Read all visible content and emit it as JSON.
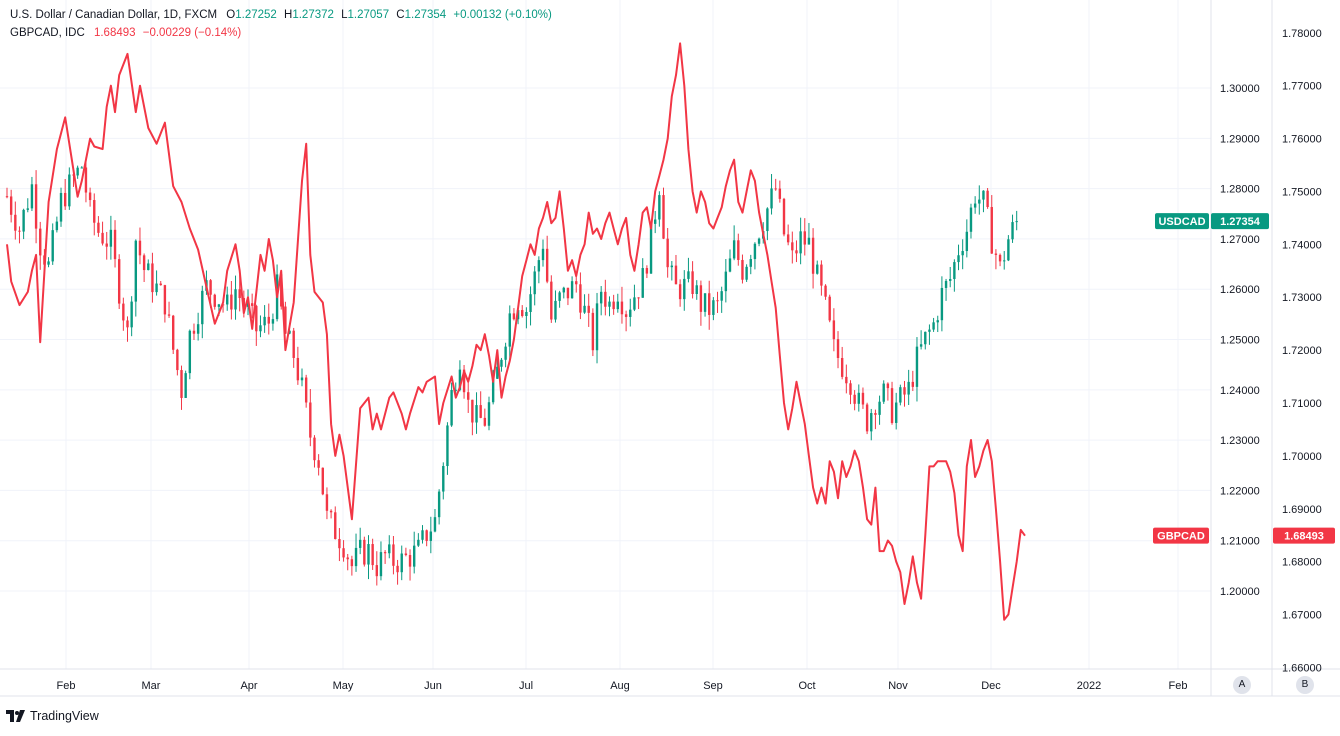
{
  "legend": {
    "primary": {
      "title": "U.S. Dollar / Canadian Dollar, 1D, FXCM",
      "o_label": "O",
      "o": "1.27252",
      "h_label": "H",
      "h": "1.27372",
      "l_label": "L",
      "l": "1.27057",
      "c_label": "C",
      "c": "1.27354",
      "change": "+0.00132 (+0.10%)"
    },
    "compare": {
      "title": "GBPCAD, IDC",
      "value": "1.68493",
      "change": "−0.00229 (−0.14%)"
    }
  },
  "branding": {
    "text": "TradingView"
  },
  "scale_buttons": {
    "a": "A",
    "b": "B"
  },
  "colors": {
    "up": "#089981",
    "down": "#f23645",
    "compare_line": "#f23645",
    "grid": "#f0f3fa",
    "axis_line": "#e0e3eb"
  },
  "chart_data": {
    "type": "candlestick+line",
    "title": "U.S. Dollar / Canadian Dollar, 1D, FXCM",
    "x_tick_labels": [
      "Feb",
      "Mar",
      "Apr",
      "May",
      "Jun",
      "Jul",
      "Aug",
      "Sep",
      "Oct",
      "Nov",
      "Dec",
      "2022",
      "Feb"
    ],
    "left_axis": {
      "series": "USDCAD",
      "range": [
        1.1845,
        1.3175
      ],
      "ticks": [
        "1.30000",
        "1.29000",
        "1.28000",
        "1.27000",
        "1.26000",
        "1.25000",
        "1.24000",
        "1.23000",
        "1.22000",
        "1.21000",
        "1.20000"
      ],
      "last_label": "USDCAD",
      "last_value": "1.27354",
      "last_numeric": 1.27354
    },
    "right_axis": {
      "series": "GBPCAD",
      "range": [
        1.6597,
        1.7862
      ],
      "ticks": [
        "1.78000",
        "1.77000",
        "1.76000",
        "1.75000",
        "1.74000",
        "1.73000",
        "1.72000",
        "1.71000",
        "1.70000",
        "1.69000",
        "1.68000",
        "1.67000",
        "1.66000"
      ],
      "last_label": "GBPCAD",
      "last_value": "1.68493",
      "last_numeric": 1.68493
    },
    "usdcad_close_path": [
      [
        0,
        1.2785
      ],
      [
        3,
        1.272
      ],
      [
        6,
        1.2805
      ],
      [
        8,
        1.269
      ],
      [
        10,
        1.2645
      ],
      [
        13,
        1.2775
      ],
      [
        16,
        1.282
      ],
      [
        18,
        1.2845
      ],
      [
        20,
        1.275
      ],
      [
        22,
        1.2715
      ],
      [
        25,
        1.269
      ],
      [
        27,
        1.26
      ],
      [
        29,
        1.251
      ],
      [
        31,
        1.27
      ],
      [
        33,
        1.264
      ],
      [
        35,
        1.2615
      ],
      [
        38,
        1.2575
      ],
      [
        40,
        1.248
      ],
      [
        42,
        1.24
      ],
      [
        44,
        1.251
      ],
      [
        46,
        1.256
      ],
      [
        48,
        1.2605
      ],
      [
        50,
        1.259
      ],
      [
        53,
        1.2565
      ],
      [
        55,
        1.26
      ],
      [
        58,
        1.2555
      ],
      [
        60,
        1.252
      ],
      [
        63,
        1.2535
      ],
      [
        65,
        1.26
      ],
      [
        67,
        1.251
      ],
      [
        69,
        1.247
      ],
      [
        71,
        1.24
      ],
      [
        73,
        1.231
      ],
      [
        75,
        1.226
      ],
      [
        77,
        1.2145
      ],
      [
        79,
        1.212
      ],
      [
        81,
        1.2095
      ],
      [
        83,
        1.205
      ],
      [
        85,
        1.2075
      ],
      [
        87,
        1.208
      ],
      [
        89,
        1.205
      ],
      [
        91,
        1.207
      ],
      [
        93,
        1.206
      ],
      [
        95,
        1.206
      ],
      [
        97,
        1.207
      ],
      [
        99,
        1.208
      ],
      [
        101,
        1.2115
      ],
      [
        103,
        1.214
      ],
      [
        105,
        1.226
      ],
      [
        107,
        1.239
      ],
      [
        109,
        1.247
      ],
      [
        111,
        1.237
      ],
      [
        113,
        1.234
      ],
      [
        115,
        1.234
      ],
      [
        117,
        1.2395
      ],
      [
        119,
        1.2475
      ],
      [
        121,
        1.255
      ],
      [
        123,
        1.258
      ],
      [
        125,
        1.256
      ],
      [
        127,
        1.2625
      ],
      [
        129,
        1.2695
      ],
      [
        131,
        1.254
      ],
      [
        133,
        1.258
      ],
      [
        135,
        1.2595
      ],
      [
        137,
        1.261
      ],
      [
        139,
        1.2555
      ],
      [
        141,
        1.2495
      ],
      [
        143,
        1.26
      ],
      [
        145,
        1.257
      ],
      [
        147,
        1.26
      ],
      [
        149,
        1.256
      ],
      [
        151,
        1.259
      ],
      [
        153,
        1.262
      ],
      [
        155,
        1.27
      ],
      [
        157,
        1.281
      ],
      [
        159,
        1.264
      ],
      [
        161,
        1.26
      ],
      [
        163,
        1.2605
      ],
      [
        165,
        1.261
      ],
      [
        167,
        1.257
      ],
      [
        169,
        1.256
      ],
      [
        171,
        1.2565
      ],
      [
        173,
        1.262
      ],
      [
        175,
        1.268
      ],
      [
        177,
        1.264
      ],
      [
        179,
        1.268
      ],
      [
        181,
        1.272
      ],
      [
        183,
        1.276
      ],
      [
        185,
        1.28
      ],
      [
        187,
        1.271
      ],
      [
        189,
        1.266
      ],
      [
        191,
        1.27
      ],
      [
        193,
        1.269
      ],
      [
        195,
        1.262
      ],
      [
        197,
        1.256
      ],
      [
        199,
        1.248
      ],
      [
        201,
        1.245
      ],
      [
        203,
        1.242
      ],
      [
        205,
        1.237
      ],
      [
        207,
        1.234
      ],
      [
        209,
        1.238
      ],
      [
        211,
        1.239
      ],
      [
        213,
        1.236
      ],
      [
        215,
        1.238
      ],
      [
        217,
        1.24
      ],
      [
        219,
        1.246
      ],
      [
        221,
        1.25
      ],
      [
        223,
        1.253
      ],
      [
        225,
        1.259
      ],
      [
        227,
        1.262
      ],
      [
        229,
        1.268
      ],
      [
        231,
        1.272
      ],
      [
        233,
        1.279
      ],
      [
        235,
        1.277
      ],
      [
        237,
        1.27
      ],
      [
        239,
        1.264
      ],
      [
        241,
        1.27
      ],
      [
        243,
        1.2735
      ]
    ],
    "gbpcad_line": [
      [
        0,
        1.74
      ],
      [
        1,
        1.733
      ],
      [
        3,
        1.7285
      ],
      [
        5,
        1.731
      ],
      [
        6,
        1.735
      ],
      [
        7,
        1.738
      ],
      [
        8,
        1.7215
      ],
      [
        10,
        1.748
      ],
      [
        12,
        1.758
      ],
      [
        14,
        1.764
      ],
      [
        16,
        1.754
      ],
      [
        17,
        1.749
      ],
      [
        18,
        1.752
      ],
      [
        20,
        1.76
      ],
      [
        21,
        1.7585
      ],
      [
        23,
        1.758
      ],
      [
        24,
        1.766
      ],
      [
        25,
        1.77
      ],
      [
        26,
        1.765
      ],
      [
        27,
        1.772
      ],
      [
        29,
        1.776
      ],
      [
        31,
        1.765
      ],
      [
        32,
        1.77
      ],
      [
        34,
        1.762
      ],
      [
        36,
        1.759
      ],
      [
        38,
        1.763
      ],
      [
        40,
        1.751
      ],
      [
        42,
        1.748
      ],
      [
        44,
        1.743
      ],
      [
        46,
        1.739
      ],
      [
        48,
        1.732
      ],
      [
        50,
        1.725
      ],
      [
        52,
        1.729
      ],
      [
        53,
        1.735
      ],
      [
        55,
        1.74
      ],
      [
        56,
        1.735
      ],
      [
        57,
        1.727
      ],
      [
        58,
        1.73
      ],
      [
        59,
        1.724
      ],
      [
        61,
        1.738
      ],
      [
        62,
        1.735
      ],
      [
        63,
        1.741
      ],
      [
        64,
        1.737
      ],
      [
        65,
        1.73
      ],
      [
        66,
        1.735
      ],
      [
        67,
        1.72
      ],
      [
        69,
        1.729
      ],
      [
        71,
        1.752
      ],
      [
        72,
        1.759
      ],
      [
        73,
        1.738
      ],
      [
        74,
        1.731
      ],
      [
        76,
        1.729
      ],
      [
        77,
        1.723
      ],
      [
        78,
        1.706
      ],
      [
        79,
        1.7
      ],
      [
        80,
        1.704
      ],
      [
        81,
        1.7
      ],
      [
        83,
        1.688
      ],
      [
        85,
        1.709
      ],
      [
        87,
        1.711
      ],
      [
        88,
        1.705
      ],
      [
        89,
        1.708
      ],
      [
        90,
        1.705
      ],
      [
        92,
        1.711
      ],
      [
        93,
        1.712
      ],
      [
        95,
        1.708
      ],
      [
        96,
        1.705
      ],
      [
        97,
        1.708
      ],
      [
        99,
        1.713
      ],
      [
        100,
        1.712
      ],
      [
        101,
        1.714
      ],
      [
        103,
        1.715
      ],
      [
        104,
        1.706
      ],
      [
        105,
        1.71
      ],
      [
        107,
        1.715
      ],
      [
        108,
        1.711
      ],
      [
        109,
        1.713
      ],
      [
        110,
        1.716
      ],
      [
        111,
        1.714
      ],
      [
        112,
        1.717
      ],
      [
        113,
        1.721
      ],
      [
        114,
        1.72
      ],
      [
        115,
        1.723
      ],
      [
        116,
        1.719
      ],
      [
        117,
        1.714
      ],
      [
        118,
        1.72
      ],
      [
        119,
        1.711
      ],
      [
        120,
        1.715
      ],
      [
        121,
        1.718
      ],
      [
        122,
        1.722
      ],
      [
        123,
        1.728
      ],
      [
        124,
        1.734
      ],
      [
        125,
        1.737
      ],
      [
        126,
        1.74
      ],
      [
        127,
        1.738
      ],
      [
        128,
        1.743
      ],
      [
        129,
        1.745
      ],
      [
        130,
        1.748
      ],
      [
        131,
        1.744
      ],
      [
        132,
        1.745
      ],
      [
        133,
        1.75
      ],
      [
        134,
        1.743
      ],
      [
        135,
        1.735
      ],
      [
        136,
        1.737
      ],
      [
        137,
        1.734
      ],
      [
        138,
        1.738
      ],
      [
        139,
        1.74
      ],
      [
        140,
        1.746
      ],
      [
        141,
        1.742
      ],
      [
        142,
        1.743
      ],
      [
        143,
        1.741
      ],
      [
        144,
        1.744
      ],
      [
        145,
        1.746
      ],
      [
        146,
        1.743
      ],
      [
        147,
        1.74
      ],
      [
        148,
        1.743
      ],
      [
        149,
        1.745
      ],
      [
        150,
        1.738
      ],
      [
        151,
        1.735
      ],
      [
        152,
        1.74
      ],
      [
        153,
        1.746
      ],
      [
        154,
        1.747
      ],
      [
        155,
        1.743
      ],
      [
        156,
        1.75
      ],
      [
        157,
        1.753
      ],
      [
        158,
        1.756
      ],
      [
        159,
        1.76
      ],
      [
        160,
        1.768
      ],
      [
        161,
        1.772
      ],
      [
        162,
        1.778
      ],
      [
        163,
        1.77
      ],
      [
        164,
        1.758
      ],
      [
        165,
        1.75
      ],
      [
        166,
        1.746
      ],
      [
        167,
        1.75
      ],
      [
        168,
        1.748
      ],
      [
        169,
        1.744
      ],
      [
        170,
        1.743
      ],
      [
        171,
        1.745
      ],
      [
        172,
        1.747
      ],
      [
        173,
        1.751
      ],
      [
        174,
        1.754
      ],
      [
        175,
        1.756
      ],
      [
        176,
        1.748
      ],
      [
        177,
        1.746
      ],
      [
        178,
        1.75
      ],
      [
        179,
        1.754
      ],
      [
        180,
        1.752
      ],
      [
        181,
        1.746
      ],
      [
        182,
        1.742
      ],
      [
        183,
        1.738
      ],
      [
        184,
        1.733
      ],
      [
        185,
        1.728
      ],
      [
        186,
        1.719
      ],
      [
        187,
        1.71
      ],
      [
        188,
        1.705
      ],
      [
        189,
        1.709
      ],
      [
        190,
        1.714
      ],
      [
        191,
        1.71
      ],
      [
        192,
        1.706
      ],
      [
        193,
        1.7
      ],
      [
        194,
        1.694
      ],
      [
        195,
        1.691
      ],
      [
        196,
        1.694
      ],
      [
        197,
        1.691
      ],
      [
        198,
        1.699
      ],
      [
        199,
        1.697
      ],
      [
        200,
        1.692
      ],
      [
        201,
        1.699
      ],
      [
        202,
        1.696
      ],
      [
        203,
        1.698
      ],
      [
        204,
        1.701
      ],
      [
        205,
        1.699
      ],
      [
        206,
        1.694
      ],
      [
        207,
        1.688
      ],
      [
        208,
        1.687
      ],
      [
        209,
        1.694
      ],
      [
        210,
        1.682
      ],
      [
        211,
        1.682
      ],
      [
        212,
        1.684
      ],
      [
        213,
        1.683
      ],
      [
        214,
        1.68
      ],
      [
        215,
        1.678
      ],
      [
        216,
        1.672
      ],
      [
        217,
        1.676
      ],
      [
        218,
        1.681
      ],
      [
        219,
        1.676
      ],
      [
        220,
        1.673
      ],
      [
        221,
        1.685
      ],
      [
        222,
        1.698
      ],
      [
        223,
        1.698
      ],
      [
        224,
        1.699
      ],
      [
        225,
        1.699
      ],
      [
        226,
        1.699
      ],
      [
        227,
        1.697
      ],
      [
        228,
        1.693
      ],
      [
        229,
        1.685
      ],
      [
        230,
        1.682
      ],
      [
        231,
        1.698
      ],
      [
        232,
        1.703
      ],
      [
        233,
        1.696
      ],
      [
        234,
        1.698
      ],
      [
        235,
        1.701
      ],
      [
        236,
        1.703
      ],
      [
        237,
        1.699
      ],
      [
        238,
        1.69
      ],
      [
        239,
        1.68
      ],
      [
        240,
        1.669
      ],
      [
        241,
        1.67
      ],
      [
        242,
        1.675
      ],
      [
        243,
        1.68
      ],
      [
        244,
        1.686
      ],
      [
        245,
        1.6849
      ]
    ]
  }
}
